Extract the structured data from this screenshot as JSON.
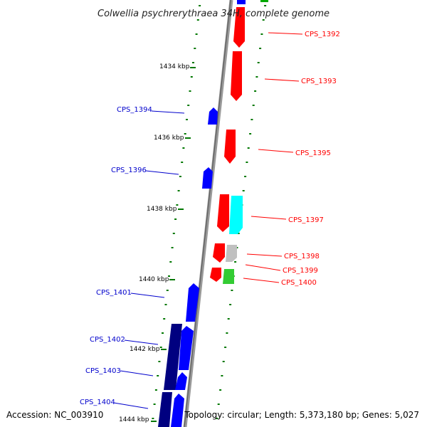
{
  "title": "Colwellia psychrerythraea 34H, complete genome",
  "footer": {
    "accession": "Accession: NC_003910",
    "topology": "Topology: circular; Length: 5,373,180 bp; Genes: 5,027"
  },
  "colors": {
    "forward": "#ff0000",
    "reverse": "#0000ff",
    "dark_reverse": "#000080",
    "cyan": "#00ffff",
    "gray": "#c0c0c0",
    "green": "#33cc33",
    "tick": "#007700"
  },
  "kbp_labels": [
    "1434 kbp",
    "1436 kbp",
    "1438 kbp",
    "1440 kbp",
    "1442 kbp",
    "1444 kbp"
  ],
  "gene_labels": {
    "right": [
      "CPS_1392",
      "CPS_1393",
      "CPS_1395",
      "CPS_1397",
      "CPS_1398",
      "CPS_1399",
      "CPS_1400"
    ],
    "left": [
      "CPS_1394",
      "CPS_1396",
      "CPS_1401",
      "CPS_1402",
      "CPS_1403",
      "CPS_1404"
    ]
  }
}
